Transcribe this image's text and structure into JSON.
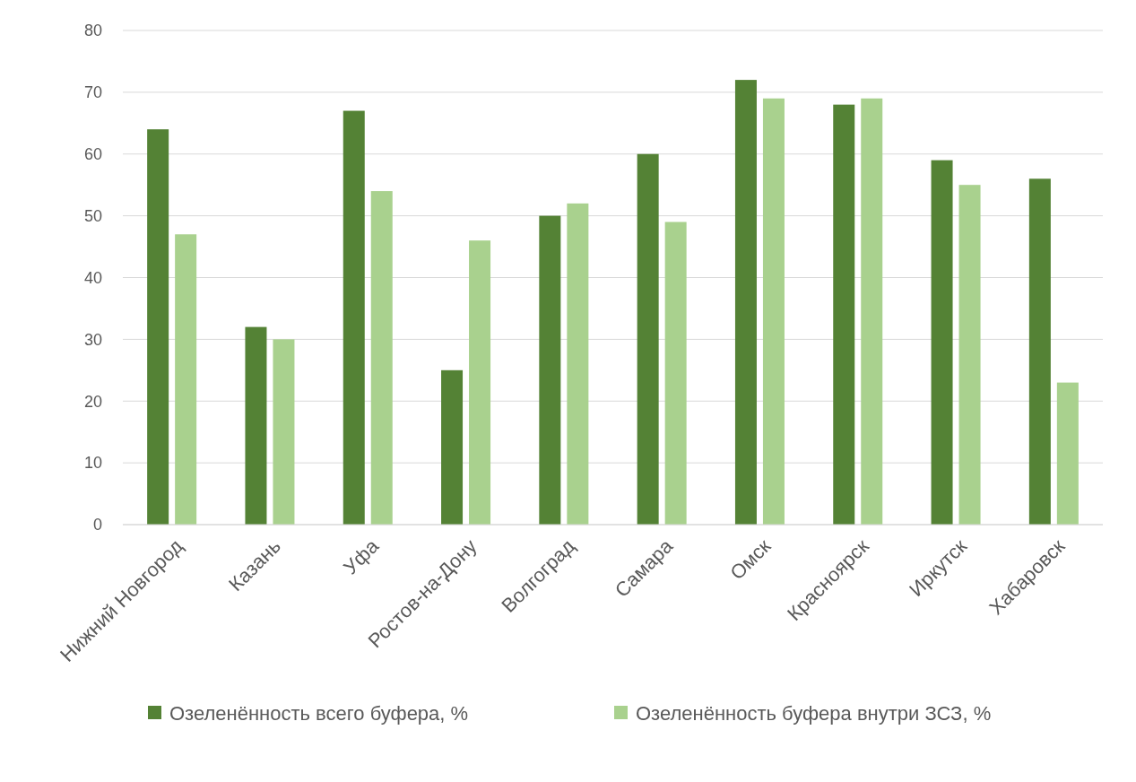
{
  "chart_data": {
    "type": "bar",
    "categories": [
      "Нижний Новгород",
      "Казань",
      "Уфа",
      "Ростов-на-Дону",
      "Волгоград",
      "Самара",
      "Омск",
      "Красноярск",
      "Иркутск",
      "Хабаровск"
    ],
    "series": [
      {
        "name": "Озеленённость всего буфера, %",
        "color": "#548235",
        "values": [
          64,
          32,
          67,
          25,
          50,
          60,
          72,
          68,
          59,
          56
        ]
      },
      {
        "name": "Озеленённость буфера внутри ЗСЗ, %",
        "color": "#a9d18e",
        "values": [
          47,
          30,
          54,
          46,
          52,
          49,
          69,
          69,
          55,
          23
        ]
      }
    ],
    "ylim": [
      0,
      80
    ],
    "yticks": [
      0,
      10,
      20,
      30,
      40,
      50,
      60,
      70,
      80
    ],
    "grid": "y",
    "legend": "bottom"
  }
}
